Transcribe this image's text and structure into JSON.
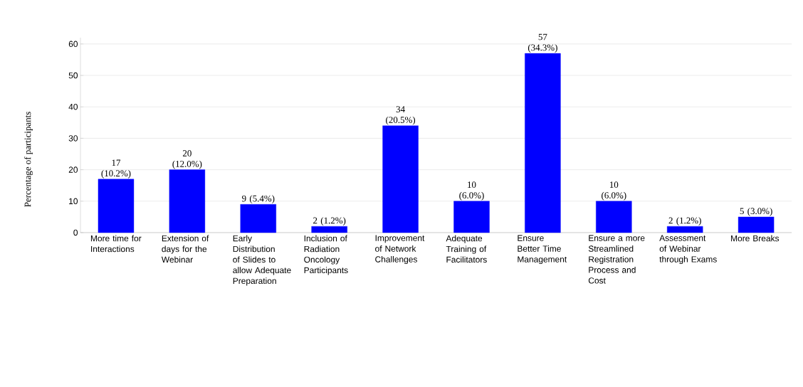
{
  "chart_data": {
    "type": "bar",
    "ylabel": "Percentage of participants",
    "categories": [
      "More time for Interactions",
      "Extension of days for the Webinar",
      "Early Distribution of Slides to allow Adequate Preparation",
      "Inclusion of Radiation Oncology Participants",
      "Improvement of Network Challenges",
      "Adequate Training of Facilitators",
      "Ensure Better Time Management",
      "Ensure a more Streamlined Registration Process and Cost",
      "Assessment of Webinar through Exams",
      "More Breaks"
    ],
    "values": [
      17,
      20,
      9,
      2,
      34,
      10,
      57,
      10,
      2,
      5
    ],
    "value_labels": [
      "17 (10.2%)",
      "20 (12.0%)",
      "9 (5.4%)",
      "2 (1.2%)",
      "34 (20.5%)",
      "10 (6.0%)",
      "57 (34.3%)",
      "10 (6.0%)",
      "2 (1.2%)",
      "5 (3.0%)"
    ],
    "color": "#0000ff",
    "ylim": [
      0,
      62
    ],
    "yticks": [
      0,
      10,
      20,
      30,
      40,
      50,
      60
    ],
    "grid": "y"
  }
}
